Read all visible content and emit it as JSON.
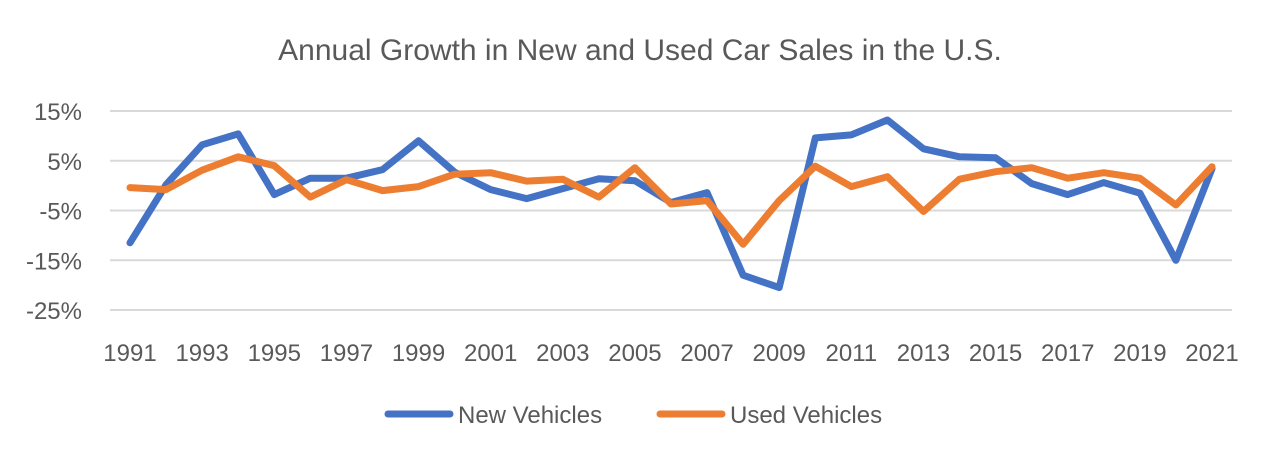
{
  "chart_data": {
    "type": "line",
    "title": "Annual Growth in New and Used Car Sales in the U.S.",
    "xlabel": "",
    "ylabel": "",
    "x": [
      1991,
      1992,
      1993,
      1994,
      1995,
      1996,
      1997,
      1998,
      1999,
      2000,
      2001,
      2002,
      2003,
      2004,
      2005,
      2006,
      2007,
      2008,
      2009,
      2010,
      2011,
      2012,
      2013,
      2014,
      2015,
      2016,
      2017,
      2018,
      2019,
      2020,
      2021
    ],
    "x_tick_labels": [
      "1991",
      "1993",
      "1995",
      "1997",
      "1999",
      "2001",
      "2003",
      "2005",
      "2007",
      "2009",
      "2011",
      "2013",
      "2015",
      "2017",
      "2019",
      "2021"
    ],
    "ylim": [
      -25,
      15
    ],
    "y_ticks": [
      15,
      5,
      -5,
      -15,
      -25
    ],
    "y_tick_labels": [
      "15%",
      "5%",
      "-5%",
      "-15%",
      "-25%"
    ],
    "grid": true,
    "legend_position": "bottom",
    "series": [
      {
        "name": "New Vehicles",
        "color": "#4472c4",
        "values": [
          -11.5,
          0.2,
          8.2,
          10.4,
          -1.8,
          1.5,
          1.5,
          3.2,
          9.0,
          2.7,
          -0.8,
          -2.6,
          -0.6,
          1.4,
          1.0,
          -3.4,
          -1.4,
          -18.0,
          -20.5,
          9.6,
          10.2,
          13.2,
          7.4,
          5.8,
          5.6,
          0.4,
          -1.8,
          0.6,
          -1.5,
          -15.0,
          3.4
        ]
      },
      {
        "name": "Used Vehicles",
        "color": "#ed7d31",
        "values": [
          -0.4,
          -0.8,
          3.1,
          5.8,
          4.0,
          -2.3,
          1.2,
          -1.0,
          -0.2,
          2.3,
          2.6,
          0.9,
          1.3,
          -2.3,
          3.6,
          -3.7,
          -3.0,
          -11.8,
          -3.0,
          3.9,
          -0.2,
          1.8,
          -5.2,
          1.3,
          2.8,
          3.6,
          1.5,
          2.6,
          1.5,
          -3.9,
          3.8
        ]
      }
    ]
  }
}
